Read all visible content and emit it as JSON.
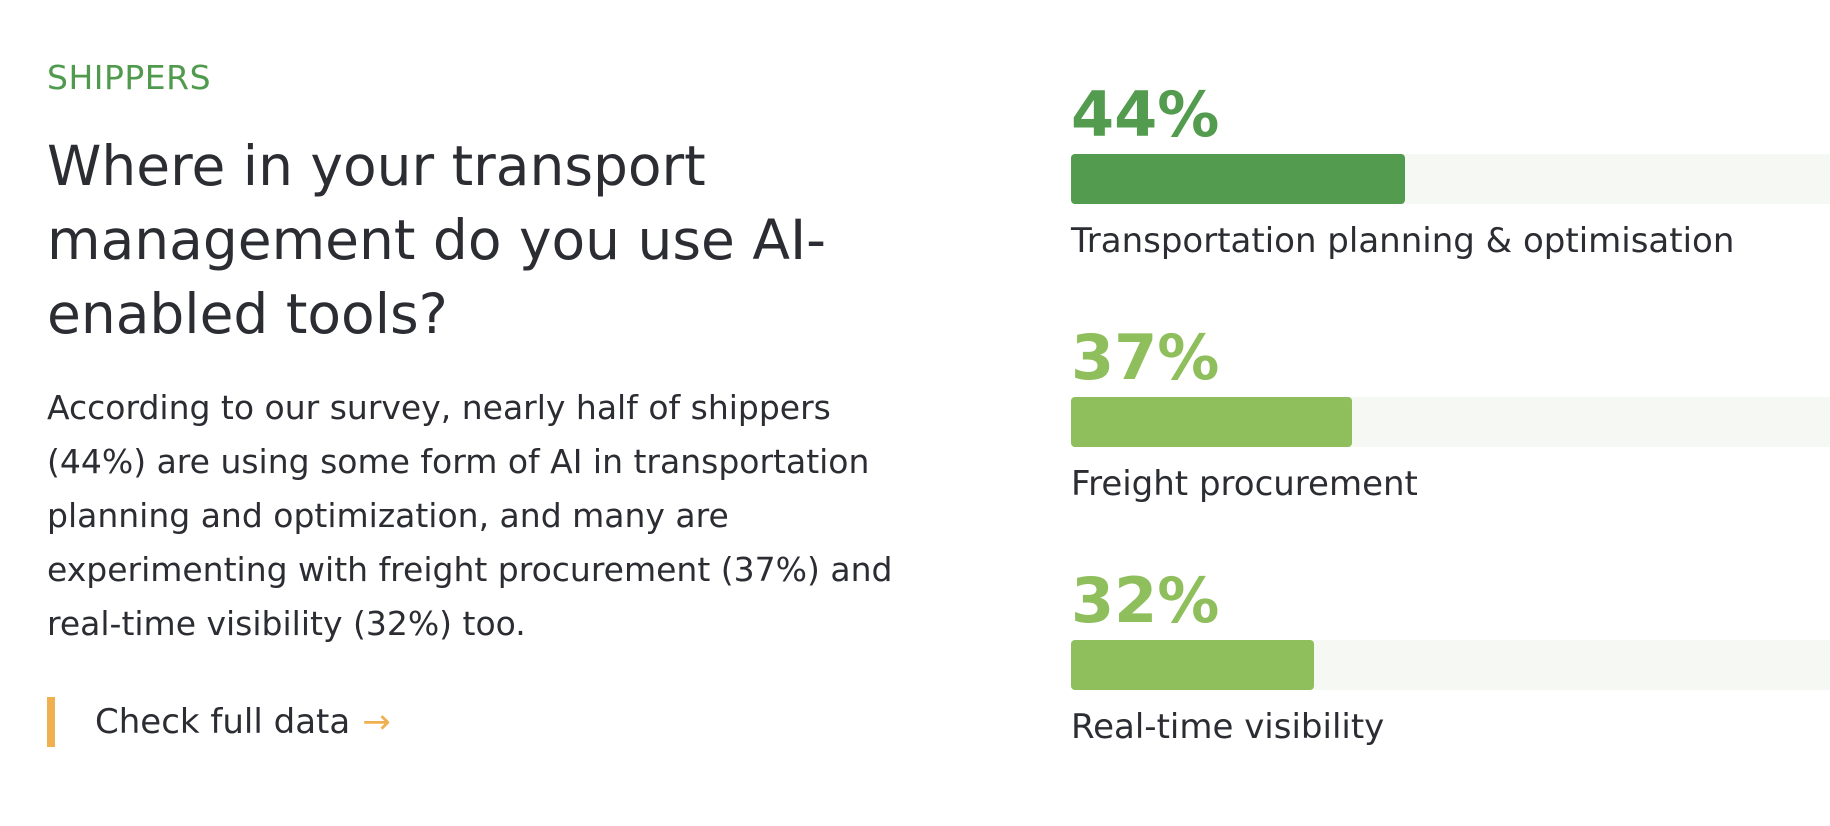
{
  "eyebrow": "SHIPPERS",
  "headline": "Where in your transport management do you use AI-enabled tools?",
  "body": "According to our survey, nearly half of shippers (44%) are using some form of AI in transportation planning and optimization, and many are experimenting with freight procurement (37%) and real-time visibility (32%) too.",
  "cta": {
    "label": "Check full data",
    "arrow": "→",
    "accent_color": "#f0b04f"
  },
  "chart_data": {
    "type": "bar",
    "orientation": "horizontal",
    "categories": [
      "Transportation planning & optimisation",
      "Freight procurement",
      "Real-time visibility"
    ],
    "values": [
      44,
      37,
      32
    ],
    "value_labels": [
      "44%",
      "37%",
      "32%"
    ],
    "xlim": [
      0,
      100
    ],
    "unit": "%",
    "colors": [
      "#539b4e",
      "#8fbf5c",
      "#8fbf5c"
    ],
    "track_color": "#f6f8f4",
    "grid": false,
    "title": "",
    "xlabel": "",
    "ylabel": ""
  }
}
